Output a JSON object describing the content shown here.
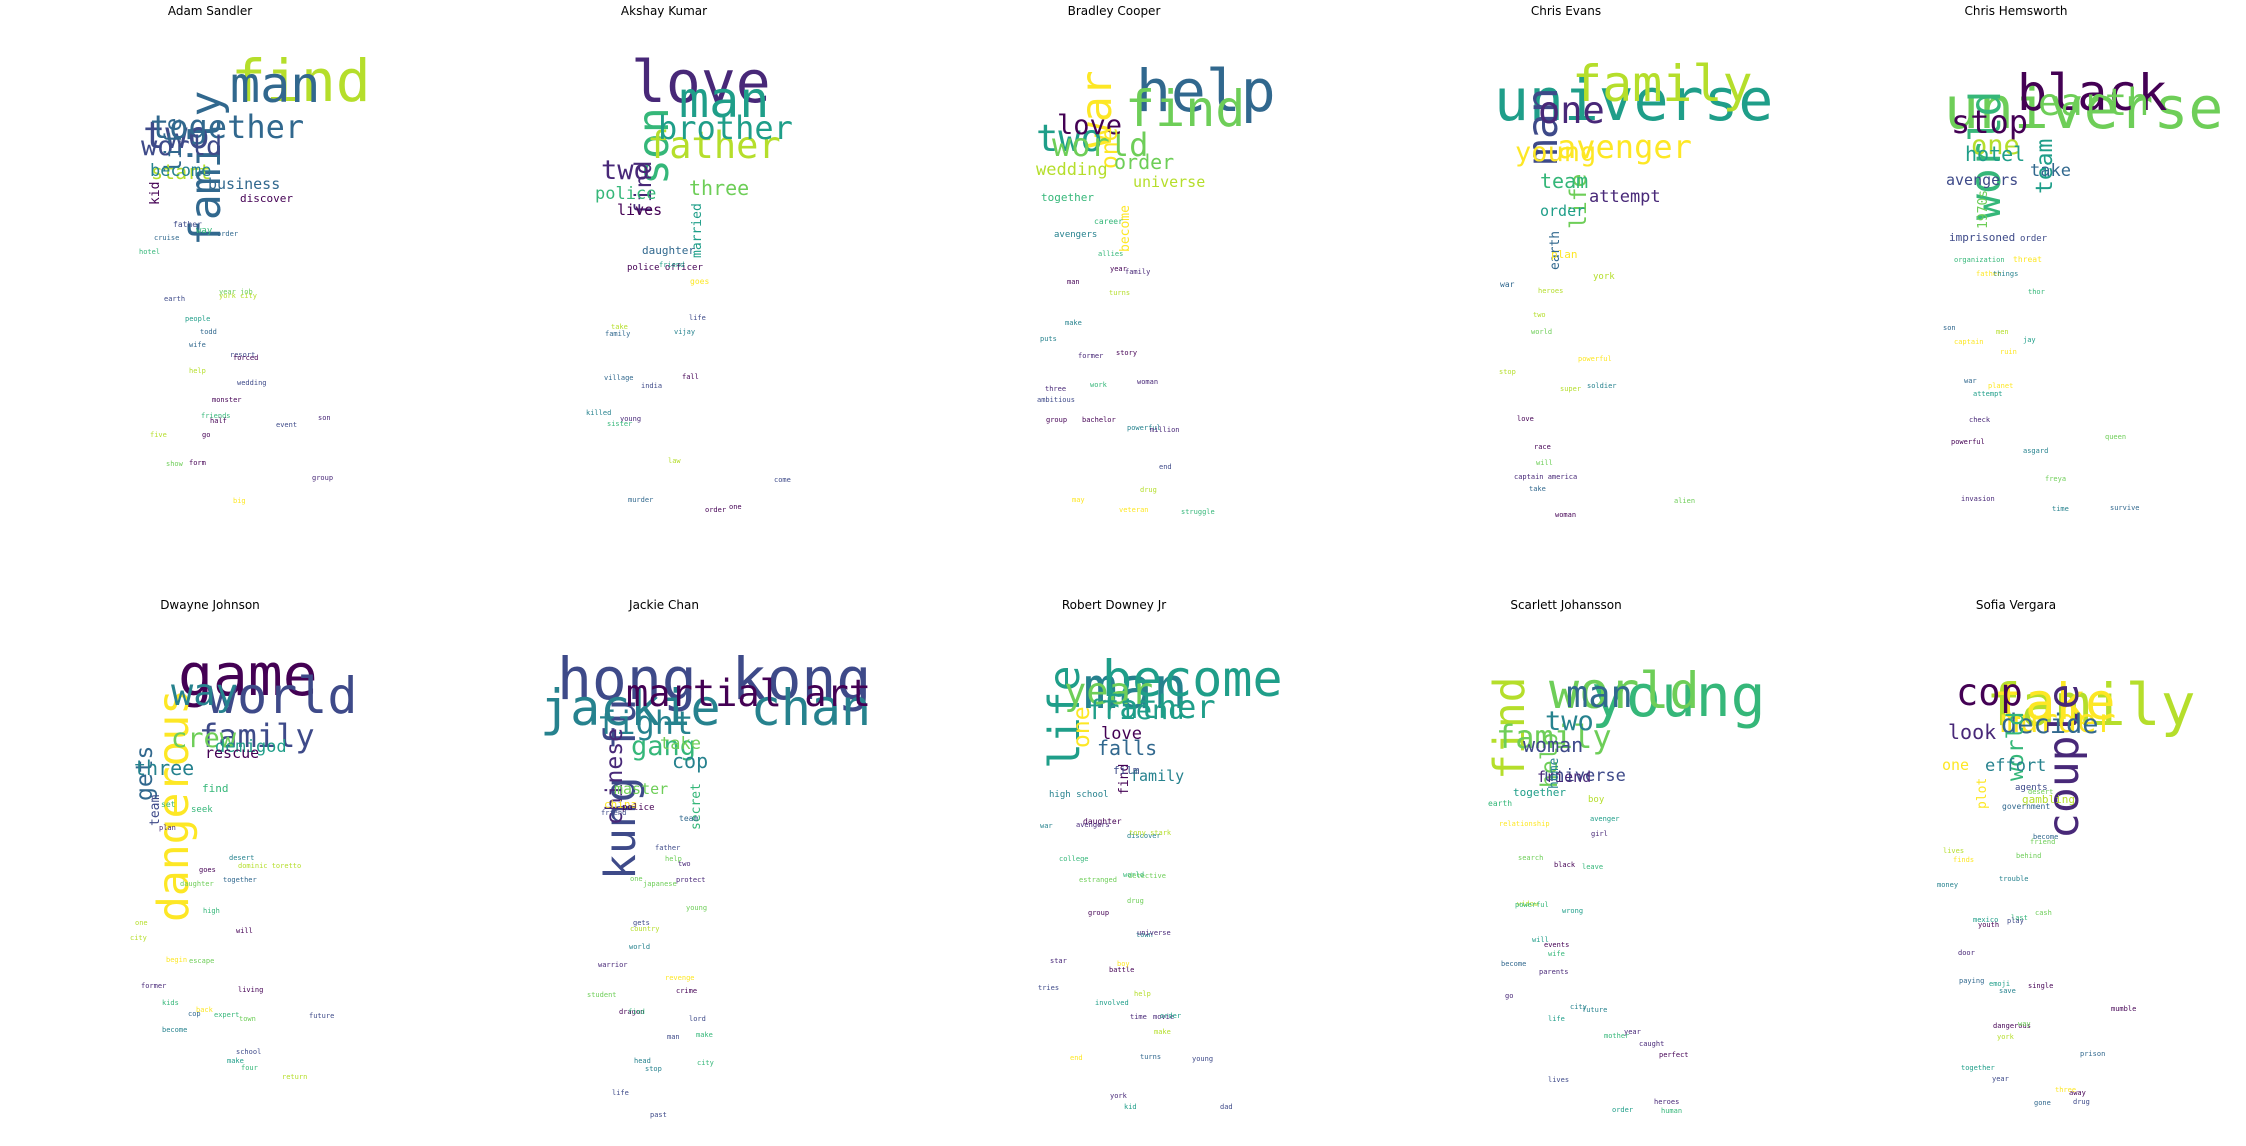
{
  "panels": [
    {
      "name": "Adam Sandler",
      "words": [
        "find",
        "man",
        "family",
        "two",
        "together",
        "world",
        "life",
        "start",
        "become",
        "business",
        "kid",
        "discover",
        "way",
        "father",
        "order",
        "cruise",
        "hotel",
        "year job",
        "york city",
        "people",
        "earth",
        "todd",
        "resort",
        "wife",
        "forced",
        "help",
        "monster",
        "wedding",
        "friends",
        "five",
        "son",
        "big",
        "show",
        "form",
        "go",
        "event",
        "group",
        "half"
      ]
    },
    {
      "name": "Akshay Kumar",
      "words": [
        "love",
        "man",
        "son",
        "father",
        "brother",
        "two",
        "find",
        "three",
        "police",
        "lives",
        "married",
        "daughter",
        "police officer",
        "goes",
        "friend",
        "life",
        "family",
        "vijay",
        "take",
        "fall",
        "village",
        "india",
        "young",
        "killed",
        "sister",
        "one",
        "order",
        "come",
        "law",
        "murder"
      ]
    },
    {
      "name": "Bradley Cooper",
      "words": [
        "help",
        "find",
        "war",
        "two",
        "world",
        "love",
        "one",
        "order",
        "wedding",
        "universe",
        "become",
        "together",
        "avengers",
        "career",
        "allies",
        "year",
        "man",
        "family",
        "turns",
        "make",
        "puts",
        "former",
        "story",
        "work",
        "three",
        "woman",
        "bachelor",
        "ambitious",
        "group",
        "may",
        "powerful",
        "drug",
        "struggle",
        "million",
        "veteran",
        "end"
      ]
    },
    {
      "name": "Chris Evans",
      "words": [
        "universe",
        "family",
        "man",
        "one",
        "avenger",
        "young",
        "life",
        "team",
        "attempt",
        "order",
        "earth",
        "plan",
        "york",
        "war",
        "heroes",
        "two",
        "world",
        "powerful",
        "stop",
        "super",
        "soldier",
        "love",
        "race",
        "alien",
        "will",
        "take",
        "woman",
        "captain america"
      ]
    },
    {
      "name": "Chris Hemsworth",
      "words": [
        "universe",
        "black",
        "world",
        "earth",
        "stop",
        "one",
        "team",
        "hotel",
        "take",
        "avengers",
        "1970s",
        "imprisoned",
        "order",
        "threat",
        "father",
        "organization",
        "things",
        "thor",
        "men",
        "son",
        "jay",
        "captain",
        "ruin",
        "planet",
        "war",
        "attempt",
        "powerful",
        "check",
        "time",
        "invasion",
        "queen",
        "freya",
        "asgard",
        "survive"
      ]
    },
    {
      "name": "Dwayne Johnson",
      "words": [
        "game",
        "world",
        "dangerous",
        "way",
        "family",
        "crew",
        "gets",
        "three",
        "demigod",
        "rescue",
        "team",
        "find",
        "seek",
        "set",
        "plan",
        "desert",
        "goes",
        "together",
        "dominic toretto",
        "daughter",
        "high",
        "one",
        "city",
        "will",
        "begin",
        "escape",
        "living",
        "former",
        "kids",
        "town",
        "back",
        "four",
        "cop",
        "become",
        "school",
        "future",
        "return",
        "make",
        "expert"
      ]
    },
    {
      "name": "Jackie Chan",
      "words": [
        "hong kong",
        "jackie chan",
        "kung fu",
        "martial art",
        "fight",
        "gang",
        "chinese",
        "cop",
        "take",
        "master",
        "secret",
        "china",
        "police",
        "team",
        "friend",
        "father",
        "help",
        "two",
        "one",
        "protect",
        "japanese",
        "young",
        "country",
        "gets",
        "world",
        "revenge",
        "crime",
        "warrior",
        "student",
        "lord",
        "dragon",
        "city",
        "life",
        "stop",
        "make",
        "man",
        "find",
        "past",
        "head"
      ]
    },
    {
      "name": "Robert Downey Jr",
      "words": [
        "man",
        "become",
        "life",
        "year",
        "father",
        "friend",
        "one",
        "falls",
        "love",
        "family",
        "find",
        "film",
        "high school",
        "daughter",
        "war",
        "avengers",
        "discover",
        "tony stark",
        "detective",
        "college",
        "estranged",
        "world",
        "drug",
        "town",
        "group",
        "universe",
        "battle",
        "star",
        "boy",
        "help",
        "tries",
        "involved",
        "time",
        "kid",
        "movie",
        "young",
        "turns",
        "end",
        "dad",
        "make",
        "york",
        "order"
      ]
    },
    {
      "name": "Scarlett Johansson",
      "words": [
        "young",
        "world",
        "find",
        "man",
        "family",
        "two",
        "help",
        "woman",
        "universe",
        "friend",
        "home",
        "together",
        "boy",
        "earth",
        "avenger",
        "relationship",
        "girl",
        "leave",
        "search",
        "black",
        "widow",
        "wrong",
        "powerful",
        "will",
        "wife",
        "become",
        "events",
        "go",
        "parents",
        "future",
        "city",
        "life",
        "year",
        "mother",
        "order",
        "lives",
        "heroes",
        "human",
        "caught",
        "perfect"
      ]
    },
    {
      "name": "Sofia Vergara",
      "words": [
        "family",
        "take",
        "couple",
        "cop",
        "murder",
        "decide",
        "world",
        "look",
        "effort",
        "one",
        "plot",
        "gambling",
        "agents",
        "government",
        "desert",
        "friend",
        "lives",
        "become",
        "behind",
        "money",
        "finds",
        "trouble",
        "last",
        "cash",
        "play",
        "mexico",
        "youth",
        "door",
        "paying",
        "single",
        "emoji",
        "save",
        "dangerous",
        "way",
        "away",
        "drug",
        "york",
        "prison",
        "three",
        "year",
        "together",
        "gone",
        "mumble"
      ]
    }
  ],
  "colors": [
    "#440154",
    "#482878",
    "#3e4a89",
    "#31688e",
    "#26828e",
    "#1f9e89",
    "#35b779",
    "#6ece58",
    "#b5de2b",
    "#fde725"
  ]
}
